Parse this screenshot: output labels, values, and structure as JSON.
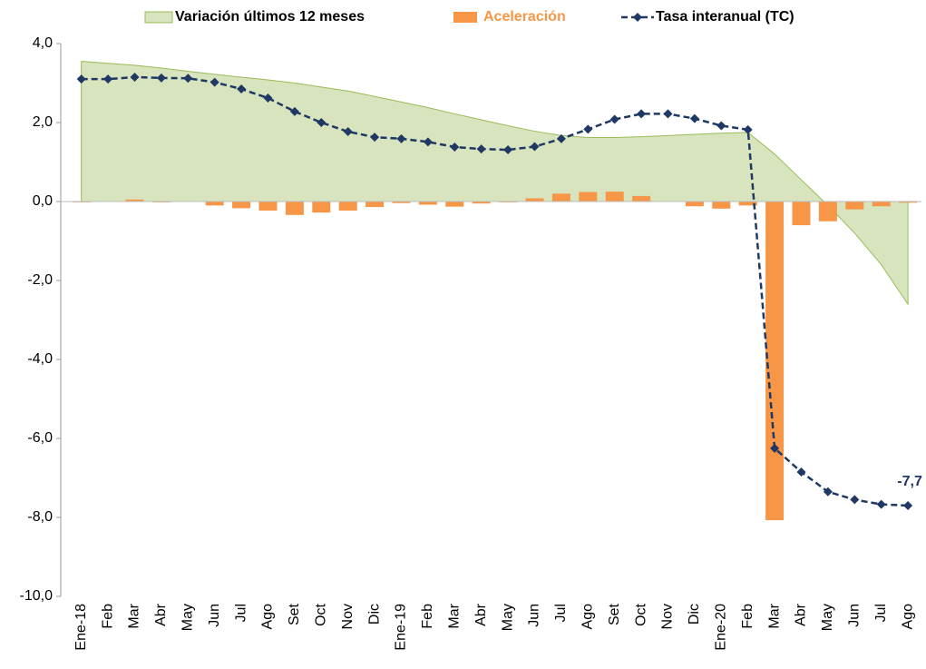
{
  "chart_data": {
    "type": "combo",
    "categories": [
      "Ene-18",
      "Feb",
      "Mar",
      "Abr",
      "May",
      "Jun",
      "Jul",
      "Ago",
      "Set",
      "Oct",
      "Nov",
      "Dic",
      "Ene-19",
      "Feb",
      "Mar",
      "Abr",
      "May",
      "Jun",
      "Jul",
      "Ago",
      "Set",
      "Oct",
      "Nov",
      "Dic",
      "Ene-20",
      "Feb",
      "Mar",
      "Abr",
      "May",
      "Jun",
      "Jul",
      "Ago"
    ],
    "series": [
      {
        "name": "Variación últimos 12 meses",
        "kind": "area",
        "color": "#d7e4bd",
        "stroke": "#9bbb59",
        "values": [
          3.55,
          3.5,
          3.45,
          3.38,
          3.3,
          3.22,
          3.15,
          3.08,
          3.0,
          2.9,
          2.8,
          2.66,
          2.52,
          2.38,
          2.22,
          2.07,
          1.92,
          1.78,
          1.67,
          1.62,
          1.62,
          1.64,
          1.67,
          1.7,
          1.73,
          1.75,
          1.2,
          0.55,
          -0.1,
          -0.8,
          -1.6,
          -2.6
        ]
      },
      {
        "name": "Aceleración",
        "kind": "bar",
        "color": "#f79646",
        "values": [
          -0.02,
          0,
          0.05,
          -0.02,
          -0.01,
          -0.1,
          -0.17,
          -0.23,
          -0.34,
          -0.28,
          -0.23,
          -0.14,
          -0.04,
          -0.08,
          -0.13,
          -0.05,
          -0.02,
          0.08,
          0.2,
          0.24,
          0.25,
          0.14,
          0,
          -0.12,
          -0.18,
          -0.1,
          -8.07,
          -0.6,
          -0.5,
          -0.2,
          -0.12,
          -0.03
        ]
      },
      {
        "name": "Tasa interanual (TC)",
        "kind": "line",
        "color": "#1f3864",
        "values": [
          3.1,
          3.1,
          3.15,
          3.13,
          3.12,
          3.02,
          2.85,
          2.62,
          2.28,
          2.0,
          1.77,
          1.63,
          1.59,
          1.51,
          1.38,
          1.33,
          1.31,
          1.39,
          1.59,
          1.83,
          2.08,
          2.22,
          2.22,
          2.1,
          1.92,
          1.82,
          -6.25,
          -6.85,
          -7.35,
          -7.55,
          -7.67,
          -7.7
        ],
        "value_labels": [
          null,
          null,
          null,
          null,
          null,
          null,
          null,
          null,
          null,
          null,
          null,
          null,
          null,
          null,
          null,
          null,
          null,
          null,
          null,
          null,
          null,
          null,
          null,
          null,
          null,
          null,
          null,
          null,
          null,
          null,
          null,
          "-7,7"
        ]
      }
    ],
    "ylim": [
      -10,
      4
    ],
    "yticks": [
      {
        "value": -10,
        "label": "-10,0"
      },
      {
        "value": -8,
        "label": "-8,0"
      },
      {
        "value": -6,
        "label": "-6,0"
      },
      {
        "value": -4,
        "label": "-4,0"
      },
      {
        "value": -2,
        "label": "-2,0"
      },
      {
        "value": 0,
        "label": "0,0"
      },
      {
        "value": 2,
        "label": "2,0"
      },
      {
        "value": 4,
        "label": "4,0"
      }
    ],
    "legend": "top"
  }
}
